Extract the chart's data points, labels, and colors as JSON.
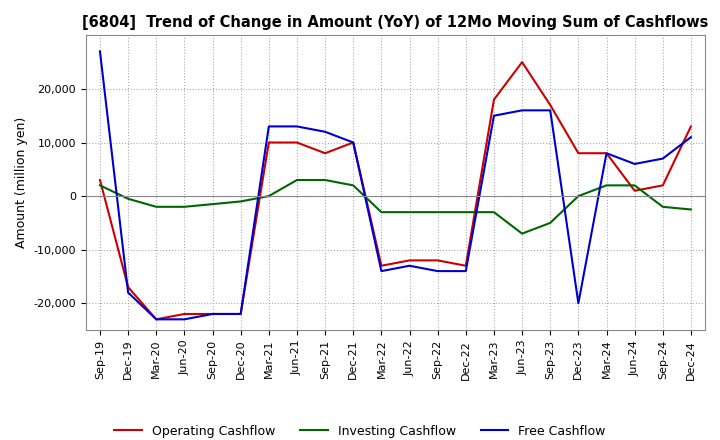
{
  "title": "[6804]  Trend of Change in Amount (YoY) of 12Mo Moving Sum of Cashflows",
  "ylabel": "Amount (million yen)",
  "x_labels": [
    "Sep-19",
    "Dec-19",
    "Mar-20",
    "Jun-20",
    "Sep-20",
    "Dec-20",
    "Mar-21",
    "Jun-21",
    "Sep-21",
    "Dec-21",
    "Mar-22",
    "Jun-22",
    "Sep-22",
    "Dec-22",
    "Mar-23",
    "Jun-23",
    "Sep-23",
    "Dec-23",
    "Mar-24",
    "Jun-24",
    "Sep-24",
    "Dec-24"
  ],
  "operating": [
    3000,
    -17000,
    -23000,
    -22000,
    -22000,
    -22000,
    10000,
    10000,
    8000,
    10000,
    -13000,
    -12000,
    -12000,
    -13000,
    18000,
    25000,
    17000,
    8000,
    8000,
    1000,
    2000,
    13000
  ],
  "investing": [
    2000,
    -500,
    -2000,
    -2000,
    -1500,
    -1000,
    0,
    3000,
    3000,
    2000,
    -3000,
    -3000,
    -3000,
    -3000,
    -3000,
    -7000,
    -5000,
    0,
    2000,
    2000,
    -2000,
    -2500
  ],
  "free": [
    27000,
    -18000,
    -23000,
    -23000,
    -22000,
    -22000,
    13000,
    13000,
    12000,
    10000,
    -14000,
    -13000,
    -14000,
    -14000,
    15000,
    16000,
    16000,
    -20000,
    8000,
    6000,
    7000,
    11000
  ],
  "ylim": [
    -25000,
    30000
  ],
  "yticks": [
    -20000,
    -10000,
    0,
    10000,
    20000
  ],
  "operating_color": "#cc0000",
  "investing_color": "#006600",
  "free_color": "#0000cc",
  "background_color": "#ffffff",
  "grid_color": "#aaaaaa"
}
